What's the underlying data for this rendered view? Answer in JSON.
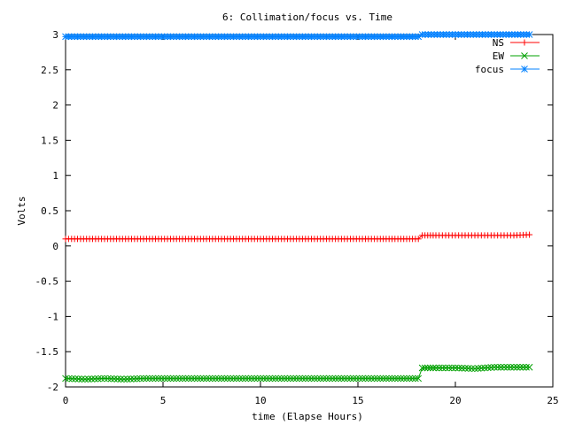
{
  "chart_data": {
    "type": "line",
    "title": "6: Collimation/focus vs. Time",
    "xlabel": "time (Elapse Hours)",
    "ylabel": "Volts",
    "xlim": [
      0,
      25
    ],
    "ylim": [
      -2,
      3
    ],
    "xticks": [
      0,
      5,
      10,
      15,
      20,
      25
    ],
    "yticks": [
      -2,
      -1.5,
      -1,
      -0.5,
      0,
      0.5,
      1,
      1.5,
      2,
      2.5,
      3
    ],
    "xtick_labels": [
      "0",
      "5",
      "10",
      "15",
      "20",
      "25"
    ],
    "ytick_labels": [
      "-2",
      "-1.5",
      "-1",
      "-0.5",
      "0",
      "0.5",
      "1",
      "1.5",
      "2",
      "2.5",
      "3"
    ],
    "legend_position": "top-right",
    "grid": false,
    "series": [
      {
        "name": "NS",
        "color": "#ff0000",
        "marker": "plus",
        "x": [
          0,
          2,
          4,
          6,
          8,
          10,
          12,
          14,
          16,
          18.1,
          18.3,
          19,
          20,
          21,
          22,
          23,
          23.8
        ],
        "y": [
          0.1,
          0.1,
          0.1,
          0.1,
          0.1,
          0.1,
          0.1,
          0.1,
          0.1,
          0.1,
          0.15,
          0.15,
          0.15,
          0.15,
          0.15,
          0.15,
          0.16
        ]
      },
      {
        "name": "EW",
        "color": "#00a000",
        "marker": "cross",
        "x": [
          0,
          1,
          2,
          3,
          4,
          6,
          8,
          10,
          12,
          14,
          16,
          18.1,
          18.3,
          19,
          20,
          21,
          21.5,
          22,
          23,
          23.8
        ],
        "y": [
          -1.88,
          -1.89,
          -1.88,
          -1.89,
          -1.88,
          -1.88,
          -1.88,
          -1.88,
          -1.88,
          -1.88,
          -1.88,
          -1.88,
          -1.73,
          -1.73,
          -1.73,
          -1.74,
          -1.73,
          -1.72,
          -1.72,
          -1.72
        ]
      },
      {
        "name": "focus",
        "color": "#0080ff",
        "marker": "star",
        "x": [
          0,
          2,
          4,
          6,
          8,
          10,
          12,
          14,
          16,
          18.1,
          18.3,
          20,
          22,
          23.8
        ],
        "y": [
          2.97,
          2.97,
          2.97,
          2.97,
          2.97,
          2.97,
          2.97,
          2.97,
          2.97,
          2.97,
          3.0,
          3.0,
          3.0,
          3.0
        ]
      }
    ]
  }
}
